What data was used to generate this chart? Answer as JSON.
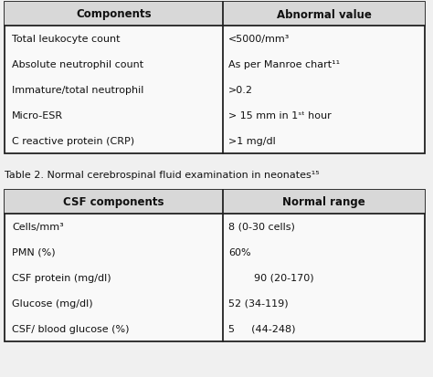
{
  "table1": {
    "headers": [
      "Components",
      "Abnormal value"
    ],
    "rows": [
      [
        "Total leukocyte count",
        "<5000/mm³"
      ],
      [
        "Absolute neutrophil count",
        "As per Manroe chart¹¹"
      ],
      [
        "Immature/total neutrophil",
        ">0.2"
      ],
      [
        "Micro-ESR",
        "> 15 mm in 1ˢᵗ hour"
      ],
      [
        "C reactive protein (CRP)",
        ">1 mg/dl"
      ]
    ],
    "col_split": 0.52,
    "header_bg": "#d8d8d8",
    "row_bg": "#f9f9f9"
  },
  "table2_caption": "Table 2. Normal cerebrospinal fluid examination in neonates¹⁵",
  "table2": {
    "headers": [
      "CSF components",
      "Normal range"
    ],
    "rows": [
      [
        "Cells/mm³",
        "8 (0-30 cells)"
      ],
      [
        "PMN (%)",
        "60%"
      ],
      [
        "CSF protein (mg/dl)",
        "        90 (20-170)"
      ],
      [
        "Glucose (mg/dl)",
        "52 (34-119)"
      ],
      [
        "CSF/ blood glucose (%)",
        "5   (44-248)"
      ]
    ],
    "col_split": 0.52,
    "header_bg": "#d8d8d8",
    "row_bg": "#f9f9f9"
  },
  "font_size": 8.0,
  "header_font_size": 8.5,
  "caption_font_size": 8.0,
  "text_color": "#111111",
  "line_color": "#222222",
  "background": "#f0f0f0"
}
